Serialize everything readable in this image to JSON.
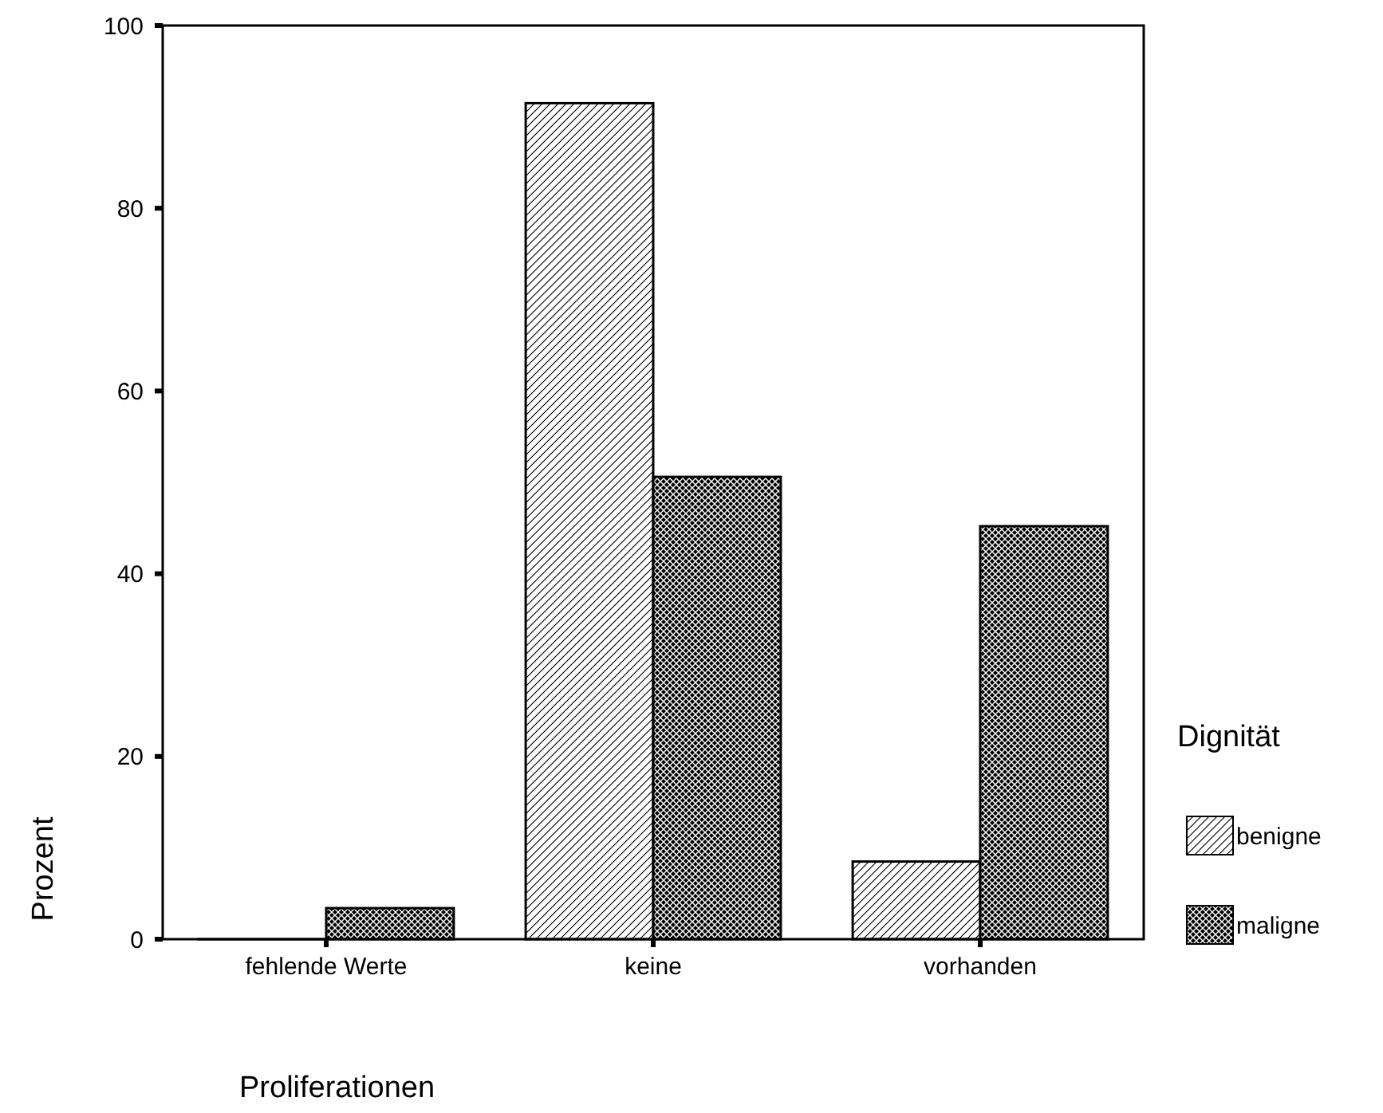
{
  "chart_data": {
    "type": "bar",
    "xlabel": "Proliferationen",
    "ylabel": "Prozent",
    "legend_title": "Dignität",
    "categories": [
      "fehlende Werte",
      "keine",
      "vorhanden"
    ],
    "series": [
      {
        "name": "benigne",
        "color": "#000000",
        "values": [
          0,
          91.5,
          8.5
        ]
      },
      {
        "name": "maligne",
        "color": "#000000",
        "values": [
          3.4,
          50.6,
          45.2
        ]
      }
    ],
    "ylim": [
      0,
      100
    ],
    "yticks": [
      0,
      20,
      40,
      60,
      80,
      100
    ],
    "legend": "right",
    "grid": false
  }
}
